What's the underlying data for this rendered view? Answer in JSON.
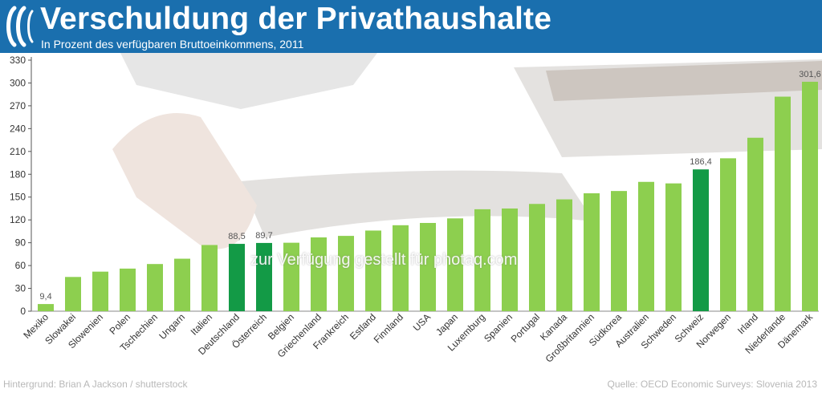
{
  "title": "Verschuldung der Privathaushalte",
  "subtitle": "In Prozent des verfügbaren Bruttoeinkommens, 2011",
  "credit_left": "Hintergrund: Brian A Jackson / shutterstock",
  "credit_right": "Quelle: OECD Economic Surveys: Slovenia 2013",
  "watermark": "zur Verfügung gestellt für photaq.com",
  "colors": {
    "header": "#1a6fae",
    "bar": "#8dcf4f",
    "bar_highlight": "#139a46",
    "axis_text": "#333333",
    "grid": "#dddddd"
  },
  "chart_data": {
    "type": "bar",
    "categories": [
      "Mexiko",
      "Slowakei",
      "Slowenien",
      "Polen",
      "Tschechien",
      "Ungarn",
      "Italien",
      "Deutschland",
      "Österreich",
      "Belgien",
      "Griechenland",
      "Frankreich",
      "Estland",
      "Finnland",
      "USA",
      "Japan",
      "Luxemburg",
      "Spanien",
      "Portugal",
      "Kanada",
      "Großbritannien",
      "Südkorea",
      "Australien",
      "Schweden",
      "Schweiz",
      "Norwegen",
      "Irland",
      "Niederlande",
      "Dänemark"
    ],
    "values": [
      9.4,
      45,
      52,
      56,
      62,
      69,
      87,
      88.5,
      89.7,
      90,
      97,
      99,
      106,
      113,
      116,
      122,
      134,
      135,
      141,
      147,
      155,
      158,
      170,
      168,
      186.4,
      201,
      228,
      282,
      301.6
    ],
    "highlighted": [
      "Deutschland",
      "Österreich",
      "Schweiz"
    ],
    "data_labels": [
      {
        "category": "Mexiko",
        "text": "9,4"
      },
      {
        "category": "Deutschland",
        "text": "88,5"
      },
      {
        "category": "Österreich",
        "text": "89,7"
      },
      {
        "category": "Schweiz",
        "text": "186,4"
      },
      {
        "category": "Dänemark",
        "text": "301,6"
      }
    ],
    "ylim": [
      0,
      330
    ],
    "yticks": [
      0,
      30,
      60,
      90,
      120,
      150,
      180,
      210,
      240,
      270,
      300,
      330
    ],
    "grid": false,
    "legend": "none"
  }
}
